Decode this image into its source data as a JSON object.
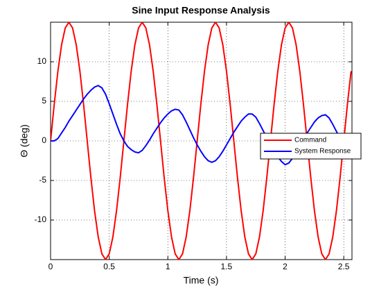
{
  "chart_data": {
    "type": "line",
    "title": "Sine Input Response Analysis",
    "x_label": "Time (s)",
    "y_label": "Θ (deg)",
    "x": [
      0,
      0.03125,
      0.0625,
      0.09375,
      0.125,
      0.15625,
      0.1875,
      0.21875,
      0.25,
      0.28125,
      0.3125,
      0.34375,
      0.375,
      0.40625,
      0.4375,
      0.46875,
      0.5,
      0.53125,
      0.5625,
      0.59375,
      0.625,
      0.65625,
      0.6875,
      0.71875,
      0.75,
      0.78125,
      0.8125,
      0.84375,
      0.875,
      0.90625,
      0.9375,
      0.96875,
      1,
      1.03125,
      1.0625,
      1.09375,
      1.125,
      1.15625,
      1.1875,
      1.21875,
      1.25,
      1.28125,
      1.3125,
      1.34375,
      1.375,
      1.40625,
      1.4375,
      1.46875,
      1.5,
      1.53125,
      1.5625,
      1.59375,
      1.625,
      1.65625,
      1.6875,
      1.71875,
      1.75,
      1.78125,
      1.8125,
      1.84375,
      1.875,
      1.90625,
      1.9375,
      1.96875,
      2,
      2.03125,
      2.0625,
      2.09375,
      2.125,
      2.15625,
      2.1875,
      2.21875,
      2.25,
      2.28125,
      2.3125,
      2.34375,
      2.375,
      2.40625,
      2.4375,
      2.46875,
      2.5,
      2.53125,
      2.5625
    ],
    "series": [
      {
        "name": "Command",
        "color": "#ff0000",
        "values": [
          0,
          4.64,
          8.82,
          12.14,
          14.27,
          15,
          14.27,
          12.14,
          8.82,
          4.64,
          0,
          -4.64,
          -8.82,
          -12.14,
          -14.27,
          -15,
          -14.27,
          -12.14,
          -8.82,
          -4.64,
          0,
          4.64,
          8.82,
          12.14,
          14.27,
          15,
          14.27,
          12.14,
          8.82,
          4.64,
          0,
          -4.64,
          -8.82,
          -12.14,
          -14.27,
          -15,
          -14.27,
          -12.14,
          -8.82,
          -4.64,
          0,
          4.64,
          8.82,
          12.14,
          14.27,
          15,
          14.27,
          12.14,
          8.82,
          4.64,
          0,
          -4.64,
          -8.82,
          -12.14,
          -14.27,
          -15,
          -14.27,
          -12.14,
          -8.82,
          -4.64,
          0,
          4.64,
          8.82,
          12.14,
          14.27,
          15,
          14.27,
          12.14,
          8.82,
          4.64,
          0,
          -4.64,
          -8.82,
          -12.14,
          -14.27,
          -15,
          -14.27,
          -12.14,
          -8.82,
          -4.64,
          0,
          4.64,
          8.82
        ]
      },
      {
        "name": "System Response",
        "color": "#0000ff",
        "values": [
          0,
          0,
          0.3,
          1.0,
          1.7,
          2.5,
          3.2,
          3.9,
          4.6,
          5.3,
          5.9,
          6.4,
          6.8,
          7.0,
          6.7,
          5.9,
          4.7,
          3.4,
          2.1,
          0.9,
          0,
          -0.7,
          -1.1,
          -1.4,
          -1.5,
          -1.2,
          -0.6,
          0.1,
          0.9,
          1.6,
          2.3,
          2.9,
          3.4,
          3.8,
          4.0,
          3.9,
          3.3,
          2.4,
          1.4,
          0.4,
          -0.5,
          -1.3,
          -2.0,
          -2.5,
          -2.7,
          -2.5,
          -2.0,
          -1.3,
          -0.5,
          0.3,
          1.1,
          1.8,
          2.5,
          3.0,
          3.4,
          3.4,
          3.0,
          2.2,
          1.3,
          0.4,
          -0.5,
          -1.3,
          -2.0,
          -2.6,
          -3.0,
          -2.8,
          -2.2,
          -1.4,
          -0.6,
          0.2,
          1.0,
          1.7,
          2.4,
          2.9,
          3.2,
          3.3,
          2.9,
          2.1,
          1.2,
          0.3,
          -0.5,
          -1.0,
          -1.3
        ]
      }
    ],
    "xlim": [
      0,
      2.57
    ],
    "ylim": [
      -15,
      15
    ],
    "xticks": [
      0,
      0.5,
      1,
      1.5,
      2,
      2.5
    ],
    "yticks": [
      -10,
      -5,
      0,
      5,
      10
    ],
    "grid": true,
    "legend": "right"
  }
}
